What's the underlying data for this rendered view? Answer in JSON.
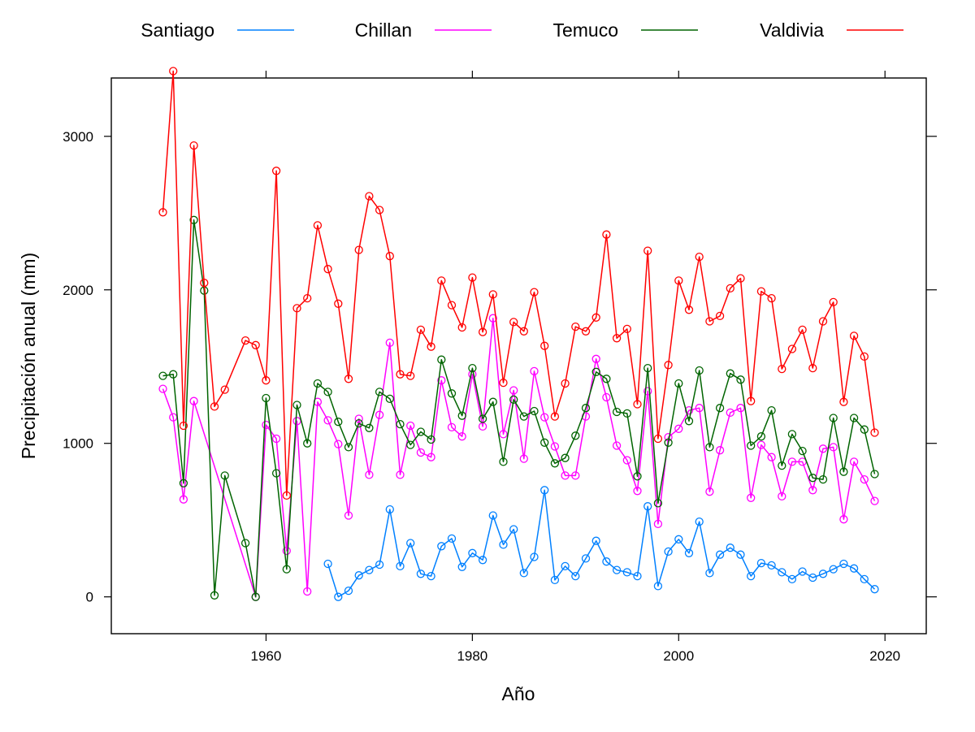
{
  "chart_data": {
    "type": "line",
    "title": "",
    "xlabel": "Año",
    "ylabel": "Precipitación anual (mm)",
    "xlim": [
      1945,
      2024
    ],
    "ylim": [
      -240,
      3380
    ],
    "xticks": [
      1960,
      1980,
      2000,
      2020
    ],
    "yticks": [
      0,
      1000,
      2000,
      3000
    ],
    "grid": false,
    "legend_position": "top",
    "markers": "open-circle",
    "series": [
      {
        "name": "Santiago",
        "color": "#0080ff",
        "points": [
          [
            1966,
            215
          ],
          [
            1967,
            0
          ],
          [
            1968,
            40
          ],
          [
            1969,
            140
          ],
          [
            1970,
            175
          ],
          [
            1971,
            210
          ],
          [
            1972,
            570
          ],
          [
            1973,
            200
          ],
          [
            1974,
            350
          ],
          [
            1975,
            150
          ],
          [
            1976,
            135
          ],
          [
            1977,
            330
          ],
          [
            1978,
            380
          ],
          [
            1979,
            195
          ],
          [
            1980,
            285
          ],
          [
            1981,
            240
          ],
          [
            1982,
            530
          ],
          [
            1983,
            340
          ],
          [
            1984,
            440
          ],
          [
            1985,
            155
          ],
          [
            1986,
            260
          ],
          [
            1987,
            695
          ],
          [
            1988,
            110
          ],
          [
            1989,
            200
          ],
          [
            1990,
            135
          ],
          [
            1991,
            250
          ],
          [
            1992,
            365
          ],
          [
            1993,
            230
          ],
          [
            1994,
            175
          ],
          [
            1995,
            160
          ],
          [
            1996,
            135
          ],
          [
            1997,
            590
          ],
          [
            1998,
            70
          ],
          [
            1999,
            295
          ],
          [
            2000,
            375
          ],
          [
            2001,
            285
          ],
          [
            2002,
            490
          ],
          [
            2003,
            155
          ],
          [
            2004,
            275
          ],
          [
            2005,
            320
          ],
          [
            2006,
            275
          ],
          [
            2007,
            135
          ],
          [
            2008,
            220
          ],
          [
            2009,
            205
          ],
          [
            2010,
            160
          ],
          [
            2011,
            115
          ],
          [
            2012,
            165
          ],
          [
            2013,
            125
          ],
          [
            2014,
            150
          ],
          [
            2015,
            180
          ],
          [
            2016,
            215
          ],
          [
            2017,
            185
          ],
          [
            2018,
            115
          ],
          [
            2019,
            50
          ]
        ]
      },
      {
        "name": "Chillan",
        "color": "#ff00ff",
        "points": [
          [
            1950,
            1355
          ],
          [
            1951,
            1170
          ],
          [
            1952,
            635
          ],
          [
            1953,
            1275
          ],
          [
            1959,
            0
          ],
          [
            1960,
            1120
          ],
          [
            1961,
            1030
          ],
          [
            1962,
            300
          ],
          [
            1963,
            1145
          ],
          [
            1964,
            35
          ],
          [
            1965,
            1270
          ],
          [
            1966,
            1150
          ],
          [
            1967,
            995
          ],
          [
            1968,
            530
          ],
          [
            1969,
            1160
          ],
          [
            1970,
            795
          ],
          [
            1971,
            1185
          ],
          [
            1972,
            1655
          ],
          [
            1973,
            795
          ],
          [
            1974,
            1115
          ],
          [
            1975,
            940
          ],
          [
            1976,
            910
          ],
          [
            1977,
            1410
          ],
          [
            1978,
            1105
          ],
          [
            1979,
            1045
          ],
          [
            1980,
            1450
          ],
          [
            1981,
            1110
          ],
          [
            1982,
            1815
          ],
          [
            1983,
            1060
          ],
          [
            1984,
            1345
          ],
          [
            1985,
            900
          ],
          [
            1986,
            1470
          ],
          [
            1987,
            1170
          ],
          [
            1988,
            980
          ],
          [
            1989,
            790
          ],
          [
            1990,
            790
          ],
          [
            1991,
            1175
          ],
          [
            1992,
            1550
          ],
          [
            1993,
            1300
          ],
          [
            1994,
            985
          ],
          [
            1995,
            890
          ],
          [
            1996,
            690
          ],
          [
            1997,
            1340
          ],
          [
            1998,
            475
          ],
          [
            1999,
            1040
          ],
          [
            2000,
            1095
          ],
          [
            2001,
            1215
          ],
          [
            2002,
            1230
          ],
          [
            2003,
            685
          ],
          [
            2004,
            955
          ],
          [
            2005,
            1200
          ],
          [
            2006,
            1230
          ],
          [
            2007,
            645
          ],
          [
            2008,
            990
          ],
          [
            2009,
            910
          ],
          [
            2010,
            655
          ],
          [
            2011,
            880
          ],
          [
            2012,
            880
          ],
          [
            2013,
            695
          ],
          [
            2014,
            965
          ],
          [
            2015,
            975
          ],
          [
            2016,
            505
          ],
          [
            2017,
            880
          ],
          [
            2018,
            765
          ],
          [
            2019,
            625
          ]
        ]
      },
      {
        "name": "Temuco",
        "color": "#006400",
        "points": [
          [
            1950,
            1440
          ],
          [
            1951,
            1450
          ],
          [
            1952,
            740
          ],
          [
            1953,
            2455
          ],
          [
            1954,
            1995
          ],
          [
            1955,
            10
          ],
          [
            1956,
            790
          ],
          [
            1958,
            350
          ],
          [
            1959,
            0
          ],
          [
            1960,
            1295
          ],
          [
            1961,
            805
          ],
          [
            1962,
            180
          ],
          [
            1963,
            1250
          ],
          [
            1964,
            1000
          ],
          [
            1965,
            1390
          ],
          [
            1966,
            1335
          ],
          [
            1967,
            1140
          ],
          [
            1968,
            975
          ],
          [
            1969,
            1130
          ],
          [
            1970,
            1100
          ],
          [
            1971,
            1335
          ],
          [
            1972,
            1290
          ],
          [
            1973,
            1125
          ],
          [
            1974,
            990
          ],
          [
            1975,
            1075
          ],
          [
            1976,
            1025
          ],
          [
            1977,
            1545
          ],
          [
            1978,
            1325
          ],
          [
            1979,
            1180
          ],
          [
            1980,
            1490
          ],
          [
            1981,
            1160
          ],
          [
            1982,
            1270
          ],
          [
            1983,
            880
          ],
          [
            1984,
            1285
          ],
          [
            1985,
            1175
          ],
          [
            1986,
            1210
          ],
          [
            1987,
            1005
          ],
          [
            1988,
            870
          ],
          [
            1989,
            905
          ],
          [
            1990,
            1050
          ],
          [
            1991,
            1230
          ],
          [
            1992,
            1465
          ],
          [
            1993,
            1420
          ],
          [
            1994,
            1205
          ],
          [
            1995,
            1195
          ],
          [
            1996,
            785
          ],
          [
            1997,
            1490
          ],
          [
            1998,
            610
          ],
          [
            1999,
            1005
          ],
          [
            2000,
            1390
          ],
          [
            2001,
            1145
          ],
          [
            2002,
            1475
          ],
          [
            2003,
            975
          ],
          [
            2004,
            1230
          ],
          [
            2005,
            1455
          ],
          [
            2006,
            1415
          ],
          [
            2007,
            985
          ],
          [
            2008,
            1045
          ],
          [
            2009,
            1215
          ],
          [
            2010,
            855
          ],
          [
            2011,
            1060
          ],
          [
            2012,
            950
          ],
          [
            2013,
            775
          ],
          [
            2014,
            765
          ],
          [
            2015,
            1165
          ],
          [
            2016,
            815
          ],
          [
            2017,
            1165
          ],
          [
            2018,
            1090
          ],
          [
            2019,
            800
          ]
        ]
      },
      {
        "name": "Valdivia",
        "color": "#ff0000",
        "points": [
          [
            1950,
            2505
          ],
          [
            1951,
            3425
          ],
          [
            1952,
            1115
          ],
          [
            1953,
            2940
          ],
          [
            1954,
            2045
          ],
          [
            1955,
            1240
          ],
          [
            1956,
            1350
          ],
          [
            1958,
            1670
          ],
          [
            1959,
            1640
          ],
          [
            1960,
            1410
          ],
          [
            1961,
            2775
          ],
          [
            1962,
            660
          ],
          [
            1963,
            1880
          ],
          [
            1964,
            1945
          ],
          [
            1965,
            2420
          ],
          [
            1966,
            2135
          ],
          [
            1967,
            1910
          ],
          [
            1968,
            1420
          ],
          [
            1969,
            2260
          ],
          [
            1970,
            2610
          ],
          [
            1971,
            2520
          ],
          [
            1972,
            2220
          ],
          [
            1973,
            1450
          ],
          [
            1974,
            1440
          ],
          [
            1975,
            1740
          ],
          [
            1976,
            1630
          ],
          [
            1977,
            2060
          ],
          [
            1978,
            1900
          ],
          [
            1979,
            1755
          ],
          [
            1980,
            2080
          ],
          [
            1981,
            1725
          ],
          [
            1982,
            1970
          ],
          [
            1983,
            1395
          ],
          [
            1984,
            1790
          ],
          [
            1985,
            1730
          ],
          [
            1986,
            1985
          ],
          [
            1987,
            1635
          ],
          [
            1988,
            1175
          ],
          [
            1989,
            1390
          ],
          [
            1990,
            1760
          ],
          [
            1991,
            1730
          ],
          [
            1992,
            1820
          ],
          [
            1993,
            2360
          ],
          [
            1994,
            1685
          ],
          [
            1995,
            1745
          ],
          [
            1996,
            1255
          ],
          [
            1997,
            2255
          ],
          [
            1998,
            1030
          ],
          [
            1999,
            1510
          ],
          [
            2000,
            2060
          ],
          [
            2001,
            1870
          ],
          [
            2002,
            2215
          ],
          [
            2003,
            1795
          ],
          [
            2004,
            1830
          ],
          [
            2005,
            2010
          ],
          [
            2006,
            2075
          ],
          [
            2007,
            1275
          ],
          [
            2008,
            1990
          ],
          [
            2009,
            1945
          ],
          [
            2010,
            1485
          ],
          [
            2011,
            1615
          ],
          [
            2012,
            1740
          ],
          [
            2013,
            1490
          ],
          [
            2014,
            1795
          ],
          [
            2015,
            1920
          ],
          [
            2016,
            1270
          ],
          [
            2017,
            1700
          ],
          [
            2018,
            1565
          ],
          [
            2019,
            1070
          ]
        ]
      }
    ]
  }
}
